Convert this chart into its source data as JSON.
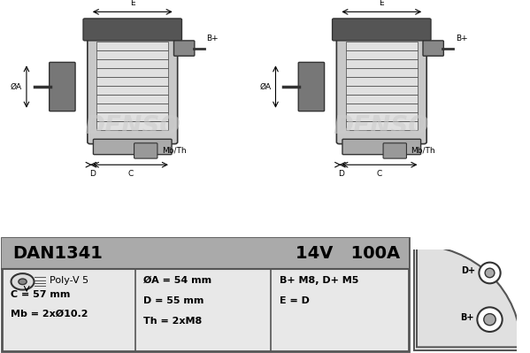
{
  "model": "DAN1341",
  "voltage": "14V",
  "current": "100A",
  "pulley_type": "Poly-V 5",
  "C": "C = 57 mm",
  "Mb": "Mb = 2xØ10.2",
  "OA": "ØA = 54 mm",
  "D": "D = 55 mm",
  "Th": "Th = 2xM8",
  "B_plus": "B+ M8, D+ M5",
  "E": "E = D",
  "bg_table": "#e8e8e8",
  "bg_header": "#aaaaaa",
  "border_color": "#555555",
  "text_dark": "#000000"
}
